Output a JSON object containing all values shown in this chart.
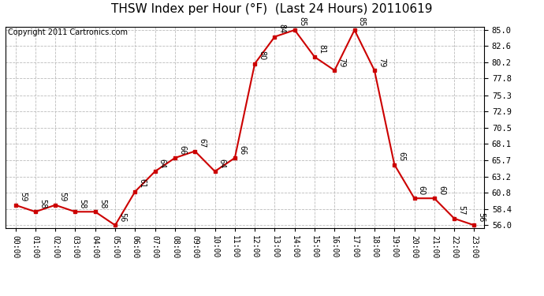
{
  "title": "THSW Index per Hour (°F)  (Last 24 Hours) 20110619",
  "copyright": "Copyright 2011 Cartronics.com",
  "hours": [
    0,
    1,
    2,
    3,
    4,
    5,
    6,
    7,
    8,
    9,
    10,
    11,
    12,
    13,
    14,
    15,
    16,
    17,
    18,
    19,
    20,
    21,
    22,
    23
  ],
  "hour_labels": [
    "00:00",
    "01:00",
    "02:00",
    "03:00",
    "04:00",
    "05:00",
    "06:00",
    "07:00",
    "08:00",
    "09:00",
    "10:00",
    "11:00",
    "12:00",
    "13:00",
    "14:00",
    "15:00",
    "16:00",
    "17:00",
    "18:00",
    "19:00",
    "20:00",
    "21:00",
    "22:00",
    "23:00"
  ],
  "values": [
    59,
    58,
    59,
    58,
    58,
    56,
    61,
    64,
    66,
    67,
    64,
    66,
    80,
    84,
    85,
    81,
    79,
    85,
    79,
    65,
    60,
    60,
    57,
    56
  ],
  "line_color": "#cc0000",
  "marker_color": "#cc0000",
  "bg_color": "#ffffff",
  "grid_color": "#bbbbbb",
  "yticks": [
    56.0,
    58.4,
    60.8,
    63.2,
    65.7,
    68.1,
    70.5,
    72.9,
    75.3,
    77.8,
    80.2,
    82.6,
    85.0
  ],
  "ylim": [
    55.6,
    85.5
  ],
  "title_fontsize": 11,
  "annotation_fontsize": 7,
  "copyright_fontsize": 7,
  "tick_fontsize": 7,
  "ytick_fontsize": 7.5
}
